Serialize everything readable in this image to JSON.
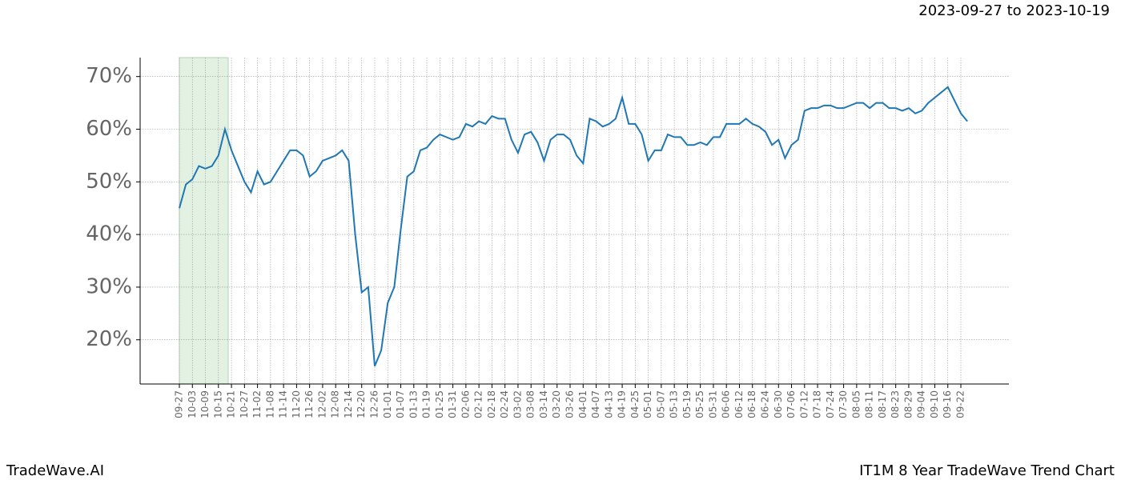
{
  "header": {
    "date_range": "2023-09-27 to 2023-10-19"
  },
  "footer": {
    "left": "TradeWave.AI",
    "right": "IT1M 8 Year TradeWave Trend Chart"
  },
  "chart_data": {
    "type": "line",
    "categories": [
      "09-27",
      null,
      "10-03",
      null,
      "10-09",
      null,
      "10-15",
      null,
      "10-21",
      null,
      "10-27",
      null,
      "11-02",
      null,
      "11-08",
      null,
      "11-14",
      null,
      "11-20",
      null,
      "11-26",
      null,
      "12-02",
      null,
      "12-08",
      null,
      "12-14",
      null,
      "12-20",
      null,
      "12-26",
      null,
      "01-01",
      null,
      "01-07",
      null,
      "01-13",
      null,
      "01-19",
      null,
      "01-25",
      null,
      "01-31",
      null,
      "02-06",
      null,
      "02-12",
      null,
      "02-18",
      null,
      "02-24",
      null,
      "03-02",
      null,
      "03-08",
      null,
      "03-14",
      null,
      "03-20",
      null,
      "03-26",
      null,
      "04-01",
      null,
      "04-07",
      null,
      "04-13",
      null,
      "04-19",
      null,
      "04-25",
      null,
      "05-01",
      null,
      "05-07",
      null,
      "05-13",
      null,
      "05-19",
      null,
      "05-25",
      null,
      "05-31",
      null,
      "06-06",
      null,
      "06-12",
      null,
      "06-18",
      null,
      "06-24",
      null,
      "06-30",
      null,
      "07-06",
      null,
      "07-12",
      null,
      "07-18",
      null,
      "07-24",
      null,
      "07-30",
      null,
      "08-05",
      null,
      "08-11",
      null,
      "08-17",
      null,
      "08-23",
      null,
      "08-29",
      null,
      "09-04",
      null,
      "09-10",
      null,
      "09-16",
      null,
      "09-22",
      null
    ],
    "series": [
      {
        "color": "#1f77b4",
        "values": [
          45,
          49.5,
          50.5,
          53,
          52.5,
          53,
          55,
          60,
          56,
          53,
          50,
          48,
          52,
          49.5,
          50,
          52,
          54,
          56,
          56,
          55,
          51,
          52,
          54,
          54.5,
          55,
          56,
          54,
          40,
          29,
          30,
          15,
          18,
          27,
          30,
          41,
          51,
          52,
          56,
          56.5,
          58,
          59,
          58.5,
          58,
          58.5,
          61,
          60.5,
          61.5,
          61,
          62.5,
          62,
          62,
          58,
          55.5,
          59,
          59.5,
          57.5,
          54,
          58,
          59,
          59,
          58,
          55,
          53.5,
          62,
          61.5,
          60.5,
          61,
          62,
          66,
          61,
          61,
          59,
          54,
          56,
          56,
          59,
          58.5,
          58.5,
          57,
          57,
          57.5,
          57,
          58.5,
          58.5,
          61,
          61,
          61,
          62,
          61,
          60.5,
          59.5,
          57,
          58,
          54.5,
          57,
          58,
          63.5,
          64,
          64,
          64.5,
          64.5,
          64,
          64,
          64.5,
          65,
          65,
          64,
          65,
          65,
          64,
          64,
          63.5,
          64,
          63,
          63.5,
          65,
          66,
          67,
          68,
          65.5,
          63,
          61.5
        ]
      }
    ],
    "ylim": [
      11.6,
      73.6
    ],
    "yticks": [
      {
        "value": 20,
        "label": "20%"
      },
      {
        "value": 30,
        "label": "30%"
      },
      {
        "value": 40,
        "label": "40%"
      },
      {
        "value": 50,
        "label": "50%"
      },
      {
        "value": 60,
        "label": "60%"
      },
      {
        "value": 70,
        "label": "70%"
      }
    ],
    "grid": true
  }
}
